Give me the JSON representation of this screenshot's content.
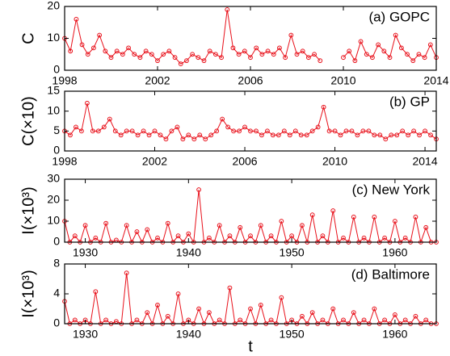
{
  "chart_data": [
    {
      "type": "line",
      "annotation": "(a) GOPC",
      "ylabel": "C",
      "color": "#e8101a",
      "x": [
        1998,
        1998.25,
        1998.5,
        1998.75,
        1999,
        1999.25,
        1999.5,
        1999.75,
        2000,
        2000.25,
        2000.5,
        2000.75,
        2001,
        2001.25,
        2001.5,
        2001.75,
        2002,
        2002.25,
        2002.5,
        2002.75,
        2003,
        2003.25,
        2003.5,
        2003.75,
        2004,
        2004.25,
        2004.5,
        2004.75,
        2005,
        2005.25,
        2005.5,
        2005.75,
        2006,
        2006.25,
        2006.5,
        2006.75,
        2007,
        2007.25,
        2007.5,
        2007.75,
        2008,
        2008.25,
        2008.5,
        2008.75,
        2009,
        2009.25,
        2009.5,
        2009.75,
        2010,
        2010.25,
        2010.5,
        2010.75,
        2011,
        2011.25,
        2011.5,
        2011.75,
        2012,
        2012.25,
        2012.5,
        2012.75,
        2013,
        2013.25,
        2013.5,
        2013.75,
        2014
      ],
      "values": [
        10,
        6,
        16,
        8,
        5,
        7,
        11,
        6,
        4,
        6,
        5,
        7,
        5,
        4,
        6,
        5,
        3,
        5,
        6,
        4,
        2,
        3,
        5,
        4,
        3,
        6,
        5,
        4,
        19,
        7,
        5,
        6,
        4,
        7,
        5,
        6,
        5,
        7,
        4,
        11,
        5,
        6,
        4,
        5,
        3,
        null,
        null,
        null,
        4,
        6,
        3,
        9,
        5,
        4,
        8,
        6,
        4,
        11,
        7,
        5,
        3,
        5,
        4,
        8,
        4
      ],
      "xlim": [
        1998,
        2014
      ],
      "xticks": [
        1998,
        2002,
        2006,
        2010,
        2014
      ],
      "ylim": [
        0,
        20
      ],
      "yticks": [
        0,
        10,
        20
      ]
    },
    {
      "type": "line",
      "annotation": "(b) GP",
      "ylabel": "C(×10)",
      "color": "#e8101a",
      "x": [
        1998,
        1998.25,
        1998.5,
        1998.75,
        1999,
        1999.25,
        1999.5,
        1999.75,
        2000,
        2000.25,
        2000.5,
        2000.75,
        2001,
        2001.25,
        2001.5,
        2001.75,
        2002,
        2002.25,
        2002.5,
        2002.75,
        2003,
        2003.25,
        2003.5,
        2003.75,
        2004,
        2004.25,
        2004.5,
        2004.75,
        2005,
        2005.25,
        2005.5,
        2005.75,
        2006,
        2006.25,
        2006.5,
        2006.75,
        2007,
        2007.25,
        2007.5,
        2007.75,
        2008,
        2008.25,
        2008.5,
        2008.75,
        2009,
        2009.25,
        2009.5,
        2009.75,
        2010,
        2010.25,
        2010.5,
        2010.75,
        2011,
        2011.25,
        2011.5,
        2011.75,
        2012,
        2012.25,
        2012.5,
        2012.75,
        2013,
        2013.25,
        2013.5,
        2013.75,
        2014,
        2014.25,
        2014.5
      ],
      "values": [
        5,
        4,
        6,
        5,
        12,
        5,
        5,
        6,
        8,
        5,
        4,
        5,
        5,
        4,
        5,
        4,
        5,
        4,
        3,
        5,
        6,
        3,
        4,
        3,
        4,
        3,
        4,
        5,
        8,
        6,
        5,
        5,
        6,
        5,
        5,
        4,
        5,
        4,
        4,
        5,
        4,
        5,
        4,
        4,
        5,
        6,
        11,
        5,
        5,
        4,
        5,
        5,
        4,
        5,
        5,
        4,
        4,
        3,
        4,
        4,
        5,
        4,
        5,
        4,
        5,
        4,
        3
      ],
      "xlim": [
        1998,
        2014.5
      ],
      "xticks": [
        1998,
        2002,
        2006,
        2010,
        2014
      ],
      "ylim": [
        0,
        15
      ],
      "yticks": [
        0,
        5,
        10,
        15
      ]
    },
    {
      "type": "line",
      "annotation": "(c) New York",
      "ylabel": "I(×10³)",
      "color": "#e8101a",
      "x": [
        1928,
        1928.5,
        1929,
        1929.5,
        1930,
        1930.5,
        1931,
        1931.5,
        1932,
        1932.5,
        1933,
        1933.5,
        1934,
        1934.5,
        1935,
        1935.5,
        1936,
        1936.5,
        1937,
        1937.5,
        1938,
        1938.5,
        1939,
        1939.5,
        1940,
        1940.5,
        1941,
        1941.5,
        1942,
        1942.5,
        1943,
        1943.5,
        1944,
        1944.5,
        1945,
        1945.5,
        1946,
        1946.5,
        1947,
        1947.5,
        1948,
        1948.5,
        1949,
        1949.5,
        1950,
        1950.5,
        1951,
        1951.5,
        1952,
        1952.5,
        1953,
        1953.5,
        1954,
        1954.5,
        1955,
        1955.5,
        1956,
        1956.5,
        1957,
        1957.5,
        1958,
        1958.5,
        1959,
        1959.5,
        1960,
        1960.5,
        1961,
        1961.5,
        1962,
        1962.5,
        1963,
        1963.5,
        1964
      ],
      "values": [
        10,
        0,
        3,
        0,
        8,
        0,
        2,
        0,
        9,
        0,
        1,
        0,
        8,
        0,
        5,
        0,
        6,
        0,
        2,
        0,
        9,
        0,
        3,
        0,
        4,
        0,
        25,
        0,
        2,
        0,
        8,
        0,
        3,
        0,
        7,
        0,
        3,
        0,
        8,
        0,
        3,
        0,
        10,
        0,
        3,
        0,
        8,
        0,
        13,
        0,
        3,
        0,
        15,
        0,
        2,
        0,
        12,
        0,
        2,
        0,
        12,
        0,
        2,
        0,
        10,
        0,
        2,
        0,
        12,
        0,
        7,
        0,
        0
      ],
      "xlim": [
        1928,
        1964
      ],
      "xticks": [
        1930,
        1940,
        1950,
        1960
      ],
      "ylim": [
        0,
        30
      ],
      "yticks": [
        0,
        10,
        20,
        30
      ]
    },
    {
      "type": "line",
      "annotation": "(d) Baltimore",
      "ylabel": "I(×10³)",
      "xlabel": "t",
      "color": "#e8101a",
      "x": [
        1928,
        1928.5,
        1929,
        1929.5,
        1930,
        1930.5,
        1931,
        1931.5,
        1932,
        1932.5,
        1933,
        1933.5,
        1934,
        1934.5,
        1935,
        1935.5,
        1936,
        1936.5,
        1937,
        1937.5,
        1938,
        1938.5,
        1939,
        1939.5,
        1940,
        1940.5,
        1941,
        1941.5,
        1942,
        1942.5,
        1943,
        1943.5,
        1944,
        1944.5,
        1945,
        1945.5,
        1946,
        1946.5,
        1947,
        1947.5,
        1948,
        1948.5,
        1949,
        1949.5,
        1950,
        1950.5,
        1951,
        1951.5,
        1952,
        1952.5,
        1953,
        1953.5,
        1954,
        1954.5,
        1955,
        1955.5,
        1956,
        1956.5,
        1957,
        1957.5,
        1958,
        1958.5,
        1959,
        1959.5,
        1960,
        1960.5,
        1961,
        1961.5,
        1962,
        1962.5,
        1963,
        1963.5,
        1964
      ],
      "values": [
        3,
        0,
        0.5,
        0,
        0.5,
        0,
        4.3,
        0,
        0.5,
        0,
        0.3,
        0,
        6.8,
        0,
        0.5,
        0,
        1.5,
        0,
        2.5,
        0,
        1,
        0,
        4,
        0,
        0.5,
        0,
        2,
        0,
        1.5,
        0,
        0.5,
        0,
        4.8,
        0,
        0.5,
        0,
        2,
        0,
        2.5,
        0,
        0.5,
        0,
        3.5,
        0,
        0.5,
        0,
        1,
        0,
        1.5,
        0,
        0.5,
        0,
        2,
        0,
        0.5,
        0,
        1.5,
        0,
        0.5,
        0,
        2,
        0,
        0.5,
        0,
        1.2,
        0,
        0.5,
        0,
        1,
        0,
        0.5,
        0,
        0
      ],
      "xlim": [
        1928,
        1964
      ],
      "xticks": [
        1930,
        1940,
        1950,
        1960
      ],
      "ylim": [
        0,
        8
      ],
      "yticks": [
        0,
        4,
        8
      ]
    }
  ]
}
